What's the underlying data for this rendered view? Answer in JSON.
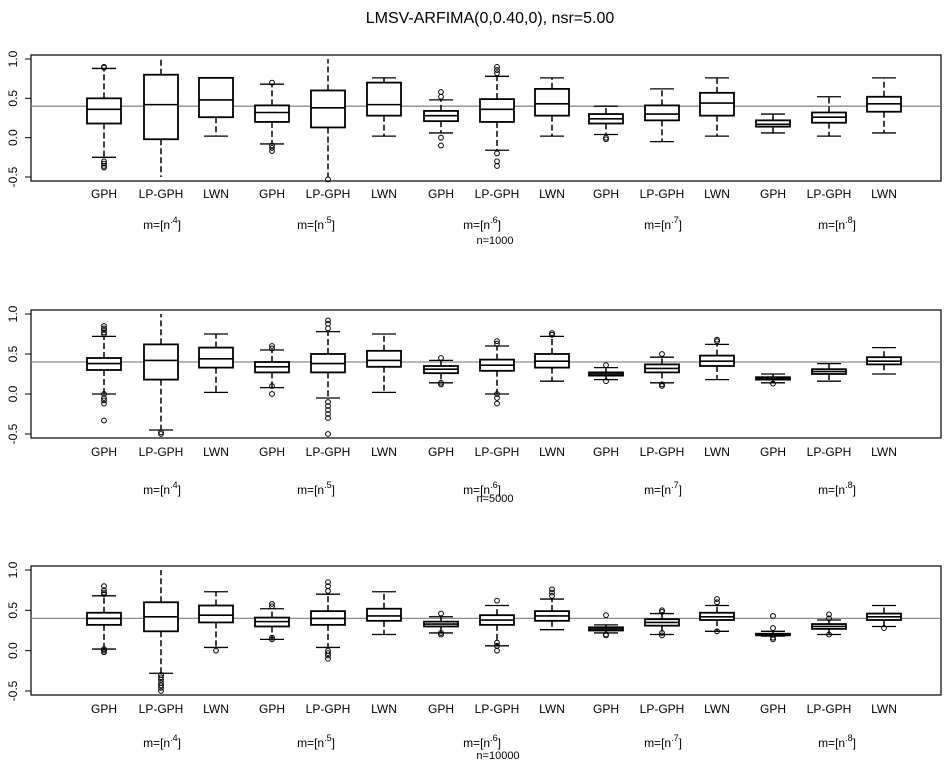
{
  "title": "LMSV-ARFIMA(0,0.40,0), nsr=5.00",
  "chart_data": [
    {
      "type": "boxplot",
      "panel_label": "n=1000",
      "ylim": [
        -0.5,
        1.0
      ],
      "yticks": [
        "-0.5",
        "0.0",
        "0.5",
        "1.0"
      ],
      "reference_line": 0.4,
      "categories": [
        "GPH",
        "LP-GPH",
        "LWN",
        "GPH",
        "LP-GPH",
        "LWN",
        "GPH",
        "LP-GPH",
        "LWN",
        "GPH",
        "LP-GPH",
        "LWN",
        "GPH",
        "LP-GPH",
        "LWN"
      ],
      "group_labels": [
        {
          "base": "m=[n",
          "exp": ".4",
          "close": "]"
        },
        {
          "base": "m=[n",
          "exp": ".5",
          "close": "]"
        },
        {
          "base": "m=[n",
          "exp": ".6",
          "close": "]"
        },
        {
          "base": "m=[n",
          "exp": ".7",
          "close": "]"
        },
        {
          "base": "m=[n",
          "exp": ".8",
          "close": "]"
        }
      ],
      "boxes": [
        {
          "min": -0.25,
          "q1": 0.18,
          "median": 0.36,
          "q3": 0.5,
          "max": 0.88,
          "outliers": [
            0.9,
            0.89,
            -0.3,
            -0.33,
            -0.36,
            -0.38
          ]
        },
        {
          "min": -0.5,
          "q1": -0.02,
          "median": 0.42,
          "q3": 0.8,
          "max": 1.0,
          "outliers": []
        },
        {
          "min": 0.02,
          "q1": 0.26,
          "median": 0.48,
          "q3": 0.76,
          "max": 0.76,
          "outliers": []
        },
        {
          "min": -0.08,
          "q1": 0.2,
          "median": 0.32,
          "q3": 0.41,
          "max": 0.68,
          "outliers": [
            0.7,
            -0.1,
            -0.13,
            -0.17
          ]
        },
        {
          "min": -0.5,
          "q1": 0.13,
          "median": 0.38,
          "q3": 0.6,
          "max": 1.0,
          "outliers": [
            -0.53
          ]
        },
        {
          "min": 0.02,
          "q1": 0.28,
          "median": 0.42,
          "q3": 0.7,
          "max": 0.76,
          "outliers": []
        },
        {
          "min": 0.06,
          "q1": 0.21,
          "median": 0.28,
          "q3": 0.34,
          "max": 0.48,
          "outliers": [
            0.58,
            0.52,
            0.0,
            -0.1
          ]
        },
        {
          "min": -0.16,
          "q1": 0.2,
          "median": 0.36,
          "q3": 0.49,
          "max": 0.78,
          "outliers": [
            0.9,
            0.86,
            0.82,
            -0.2,
            -0.3,
            -0.36
          ]
        },
        {
          "min": 0.02,
          "q1": 0.28,
          "median": 0.43,
          "q3": 0.62,
          "max": 0.76,
          "outliers": []
        },
        {
          "min": 0.04,
          "q1": 0.18,
          "median": 0.24,
          "q3": 0.3,
          "max": 0.4,
          "outliers": [
            0.0,
            -0.02
          ]
        },
        {
          "min": -0.05,
          "q1": 0.22,
          "median": 0.3,
          "q3": 0.41,
          "max": 0.62,
          "outliers": []
        },
        {
          "min": 0.02,
          "q1": 0.28,
          "median": 0.44,
          "q3": 0.57,
          "max": 0.76,
          "outliers": []
        },
        {
          "min": 0.06,
          "q1": 0.14,
          "median": 0.17,
          "q3": 0.22,
          "max": 0.3,
          "outliers": []
        },
        {
          "min": 0.02,
          "q1": 0.19,
          "median": 0.26,
          "q3": 0.32,
          "max": 0.52,
          "outliers": []
        },
        {
          "min": 0.06,
          "q1": 0.33,
          "median": 0.43,
          "q3": 0.52,
          "max": 0.76,
          "outliers": []
        }
      ]
    },
    {
      "type": "boxplot",
      "panel_label": "n=5000",
      "ylim": [
        -0.5,
        1.0
      ],
      "yticks": [
        "-0.5",
        "0.0",
        "0.5",
        "1.0"
      ],
      "reference_line": 0.4,
      "categories": [
        "GPH",
        "LP-GPH",
        "LWN",
        "GPH",
        "LP-GPH",
        "LWN",
        "GPH",
        "LP-GPH",
        "LWN",
        "GPH",
        "LP-GPH",
        "LWN",
        "GPH",
        "LP-GPH",
        "LWN"
      ],
      "group_labels": [
        {
          "base": "m=[n",
          "exp": ".4",
          "close": "]"
        },
        {
          "base": "m=[n",
          "exp": ".5",
          "close": "]"
        },
        {
          "base": "m=[n",
          "exp": ".6",
          "close": "]"
        },
        {
          "base": "m=[n",
          "exp": ".7",
          "close": "]"
        },
        {
          "base": "m=[n",
          "exp": ".8",
          "close": "]"
        }
      ],
      "boxes": [
        {
          "min": 0.0,
          "q1": 0.3,
          "median": 0.38,
          "q3": 0.45,
          "max": 0.72,
          "outliers": [
            0.85,
            0.82,
            0.8,
            0.77,
            0.75,
            0.0,
            -0.05,
            -0.08,
            -0.12,
            -0.33
          ]
        },
        {
          "min": -0.45,
          "q1": 0.18,
          "median": 0.42,
          "q3": 0.62,
          "max": 1.0,
          "outliers": [
            -0.48,
            -0.5
          ]
        },
        {
          "min": 0.02,
          "q1": 0.33,
          "median": 0.44,
          "q3": 0.58,
          "max": 0.75,
          "outliers": []
        },
        {
          "min": 0.08,
          "q1": 0.27,
          "median": 0.34,
          "q3": 0.4,
          "max": 0.55,
          "outliers": [
            0.6,
            0.57,
            0.1,
            0.0
          ]
        },
        {
          "min": -0.05,
          "q1": 0.27,
          "median": 0.38,
          "q3": 0.5,
          "max": 0.78,
          "outliers": [
            0.92,
            0.88,
            0.82,
            -0.1,
            -0.15,
            -0.2,
            -0.25,
            -0.3,
            -0.5
          ]
        },
        {
          "min": 0.02,
          "q1": 0.34,
          "median": 0.42,
          "q3": 0.54,
          "max": 0.75,
          "outliers": []
        },
        {
          "min": 0.14,
          "q1": 0.26,
          "median": 0.31,
          "q3": 0.35,
          "max": 0.42,
          "outliers": [
            0.45,
            0.14,
            0.12
          ]
        },
        {
          "min": 0.0,
          "q1": 0.29,
          "median": 0.36,
          "q3": 0.43,
          "max": 0.6,
          "outliers": [
            0.66,
            0.63,
            0.0,
            -0.05,
            -0.12
          ]
        },
        {
          "min": 0.16,
          "q1": 0.33,
          "median": 0.41,
          "q3": 0.5,
          "max": 0.72,
          "outliers": [
            0.76,
            0.74
          ]
        },
        {
          "min": 0.18,
          "q1": 0.23,
          "median": 0.25,
          "q3": 0.27,
          "max": 0.33,
          "outliers": [
            0.36,
            0.16
          ]
        },
        {
          "min": 0.14,
          "q1": 0.27,
          "median": 0.32,
          "q3": 0.37,
          "max": 0.46,
          "outliers": [
            0.5,
            0.12,
            0.1
          ]
        },
        {
          "min": 0.18,
          "q1": 0.35,
          "median": 0.41,
          "q3": 0.48,
          "max": 0.62,
          "outliers": [
            0.68,
            0.66
          ]
        },
        {
          "min": 0.14,
          "q1": 0.18,
          "median": 0.19,
          "q3": 0.21,
          "max": 0.25,
          "outliers": [
            0.13
          ]
        },
        {
          "min": 0.16,
          "q1": 0.25,
          "median": 0.28,
          "q3": 0.31,
          "max": 0.38,
          "outliers": []
        },
        {
          "min": 0.25,
          "q1": 0.37,
          "median": 0.41,
          "q3": 0.46,
          "max": 0.58,
          "outliers": []
        }
      ]
    },
    {
      "type": "boxplot",
      "panel_label": "n=10000",
      "ylim": [
        -0.5,
        1.0
      ],
      "yticks": [
        "-0.5",
        "0.0",
        "0.5",
        "1.0"
      ],
      "reference_line": 0.4,
      "categories": [
        "GPH",
        "LP-GPH",
        "LWN",
        "GPH",
        "LP-GPH",
        "LWN",
        "GPH",
        "LP-GPH",
        "LWN",
        "GPH",
        "LP-GPH",
        "LWN",
        "GPH",
        "LP-GPH",
        "LWN"
      ],
      "group_labels": [
        {
          "base": "m=[n",
          "exp": ".4",
          "close": "]"
        },
        {
          "base": "m=[n",
          "exp": ".5",
          "close": "]"
        },
        {
          "base": "m=[n",
          "exp": ".6",
          "close": "]"
        },
        {
          "base": "m=[n",
          "exp": ".7",
          "close": "]"
        },
        {
          "base": "m=[n",
          "exp": ".8",
          "close": "]"
        }
      ],
      "boxes": [
        {
          "min": 0.02,
          "q1": 0.32,
          "median": 0.4,
          "q3": 0.47,
          "max": 0.68,
          "outliers": [
            0.8,
            0.75,
            0.72,
            0.7,
            0.02,
            0.0,
            -0.02
          ]
        },
        {
          "min": -0.28,
          "q1": 0.24,
          "median": 0.42,
          "q3": 0.6,
          "max": 1.0,
          "outliers": [
            -0.3,
            -0.33,
            -0.36,
            -0.4,
            -0.43,
            -0.46,
            -0.5
          ]
        },
        {
          "min": 0.04,
          "q1": 0.35,
          "median": 0.44,
          "q3": 0.56,
          "max": 0.73,
          "outliers": [
            0.0
          ]
        },
        {
          "min": 0.14,
          "q1": 0.3,
          "median": 0.36,
          "q3": 0.41,
          "max": 0.52,
          "outliers": [
            0.58,
            0.55,
            0.16,
            0.14
          ]
        },
        {
          "min": 0.04,
          "q1": 0.32,
          "median": 0.4,
          "q3": 0.49,
          "max": 0.7,
          "outliers": [
            0.85,
            0.8,
            0.74,
            0.0,
            -0.03,
            -0.06,
            -0.1
          ]
        },
        {
          "min": 0.2,
          "q1": 0.37,
          "median": 0.43,
          "q3": 0.52,
          "max": 0.73,
          "outliers": []
        },
        {
          "min": 0.22,
          "q1": 0.3,
          "median": 0.33,
          "q3": 0.36,
          "max": 0.42,
          "outliers": [
            0.46,
            0.22,
            0.2
          ]
        },
        {
          "min": 0.06,
          "q1": 0.32,
          "median": 0.38,
          "q3": 0.44,
          "max": 0.56,
          "outliers": [
            0.62,
            0.1,
            0.06,
            0.0
          ]
        },
        {
          "min": 0.26,
          "q1": 0.37,
          "median": 0.43,
          "q3": 0.49,
          "max": 0.64,
          "outliers": [
            0.76,
            0.72,
            0.68
          ]
        },
        {
          "min": 0.22,
          "q1": 0.25,
          "median": 0.27,
          "q3": 0.29,
          "max": 0.32,
          "outliers": [
            0.44,
            0.2,
            0.19
          ]
        },
        {
          "min": 0.2,
          "q1": 0.31,
          "median": 0.35,
          "q3": 0.39,
          "max": 0.46,
          "outliers": [
            0.5,
            0.48,
            0.22,
            0.19
          ]
        },
        {
          "min": 0.24,
          "q1": 0.38,
          "median": 0.42,
          "q3": 0.47,
          "max": 0.56,
          "outliers": [
            0.64,
            0.6,
            0.24
          ]
        },
        {
          "min": 0.18,
          "q1": 0.19,
          "median": 0.2,
          "q3": 0.21,
          "max": 0.24,
          "outliers": [
            0.43,
            0.28,
            0.16,
            0.14
          ]
        },
        {
          "min": 0.2,
          "q1": 0.27,
          "median": 0.3,
          "q3": 0.33,
          "max": 0.38,
          "outliers": [
            0.45,
            0.4,
            0.2
          ]
        },
        {
          "min": 0.3,
          "q1": 0.38,
          "median": 0.42,
          "q3": 0.46,
          "max": 0.56,
          "outliers": [
            0.28
          ]
        }
      ]
    }
  ]
}
